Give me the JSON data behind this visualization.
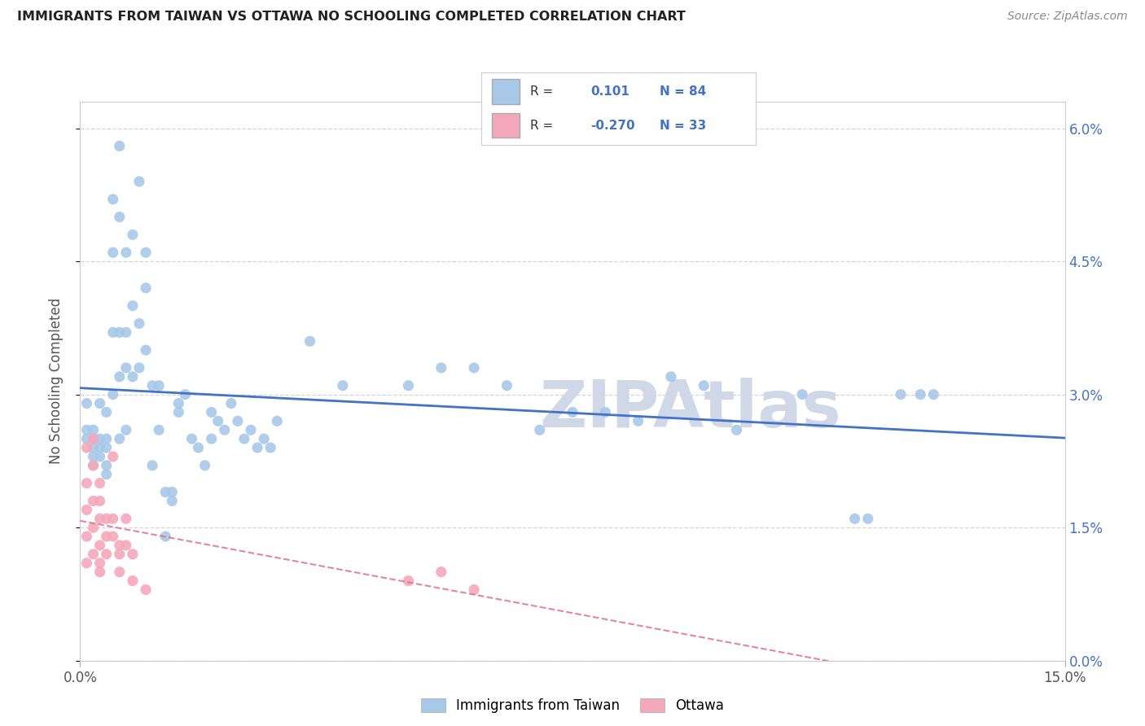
{
  "title": "IMMIGRANTS FROM TAIWAN VS OTTAWA NO SCHOOLING COMPLETED CORRELATION CHART",
  "source": "Source: ZipAtlas.com",
  "ylabel_label": "No Schooling Completed",
  "xlim": [
    0.0,
    0.15
  ],
  "ylim": [
    0.0,
    0.063
  ],
  "x_tick_vals": [
    0.0,
    0.15
  ],
  "y_tick_vals": [
    0.0,
    0.015,
    0.03,
    0.045,
    0.06
  ],
  "x_tick_labels": [
    "0.0%",
    "15.0%"
  ],
  "y_tick_labels": [
    "0.0%",
    "1.5%",
    "3.0%",
    "4.5%",
    "6.0%"
  ],
  "taiwan_color": "#a8c8e8",
  "ottawa_color": "#f4a8bc",
  "taiwan_line_color": "#4472c4",
  "ottawa_line_color": "#e07090",
  "watermark_color": "#d0d8e8",
  "taiwan_x": [
    0.001,
    0.001,
    0.001,
    0.002,
    0.002,
    0.002,
    0.002,
    0.002,
    0.003,
    0.003,
    0.003,
    0.003,
    0.004,
    0.004,
    0.004,
    0.004,
    0.004,
    0.005,
    0.005,
    0.005,
    0.005,
    0.006,
    0.006,
    0.006,
    0.006,
    0.006,
    0.007,
    0.007,
    0.007,
    0.007,
    0.008,
    0.008,
    0.008,
    0.009,
    0.009,
    0.009,
    0.01,
    0.01,
    0.01,
    0.011,
    0.011,
    0.012,
    0.012,
    0.013,
    0.013,
    0.014,
    0.014,
    0.015,
    0.015,
    0.016,
    0.017,
    0.018,
    0.019,
    0.02,
    0.02,
    0.021,
    0.022,
    0.023,
    0.024,
    0.025,
    0.026,
    0.027,
    0.028,
    0.029,
    0.03,
    0.035,
    0.04,
    0.05,
    0.055,
    0.06,
    0.065,
    0.07,
    0.075,
    0.08,
    0.085,
    0.09,
    0.095,
    0.1,
    0.11,
    0.118,
    0.12,
    0.125,
    0.128,
    0.13
  ],
  "taiwan_y": [
    0.029,
    0.026,
    0.025,
    0.026,
    0.025,
    0.024,
    0.023,
    0.022,
    0.029,
    0.025,
    0.024,
    0.023,
    0.028,
    0.025,
    0.024,
    0.022,
    0.021,
    0.052,
    0.046,
    0.037,
    0.03,
    0.058,
    0.05,
    0.037,
    0.032,
    0.025,
    0.046,
    0.037,
    0.033,
    0.026,
    0.048,
    0.04,
    0.032,
    0.054,
    0.038,
    0.033,
    0.046,
    0.042,
    0.035,
    0.031,
    0.022,
    0.031,
    0.026,
    0.019,
    0.014,
    0.019,
    0.018,
    0.029,
    0.028,
    0.03,
    0.025,
    0.024,
    0.022,
    0.028,
    0.025,
    0.027,
    0.026,
    0.029,
    0.027,
    0.025,
    0.026,
    0.024,
    0.025,
    0.024,
    0.027,
    0.036,
    0.031,
    0.031,
    0.033,
    0.033,
    0.031,
    0.026,
    0.028,
    0.028,
    0.027,
    0.032,
    0.031,
    0.026,
    0.03,
    0.016,
    0.016,
    0.03,
    0.03,
    0.03
  ],
  "ottawa_x": [
    0.001,
    0.001,
    0.001,
    0.001,
    0.001,
    0.002,
    0.002,
    0.002,
    0.002,
    0.002,
    0.003,
    0.003,
    0.003,
    0.003,
    0.003,
    0.003,
    0.004,
    0.004,
    0.004,
    0.005,
    0.005,
    0.005,
    0.006,
    0.006,
    0.006,
    0.007,
    0.007,
    0.008,
    0.008,
    0.01,
    0.05,
    0.055,
    0.06
  ],
  "ottawa_y": [
    0.024,
    0.02,
    0.017,
    0.014,
    0.011,
    0.025,
    0.022,
    0.018,
    0.015,
    0.012,
    0.02,
    0.018,
    0.016,
    0.013,
    0.011,
    0.01,
    0.016,
    0.014,
    0.012,
    0.023,
    0.016,
    0.014,
    0.013,
    0.012,
    0.01,
    0.016,
    0.013,
    0.012,
    0.009,
    0.008,
    0.009,
    0.01,
    0.008
  ]
}
